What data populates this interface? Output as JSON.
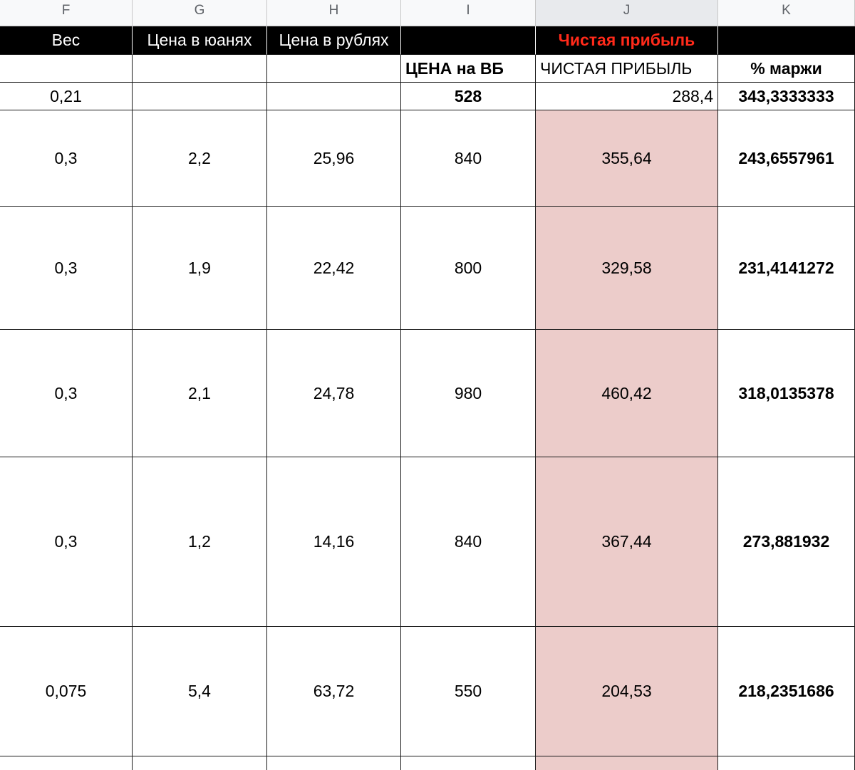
{
  "column_headers": [
    "F",
    "G",
    "H",
    "I",
    "J",
    "K"
  ],
  "selected_column": "J",
  "header_row": [
    "Вес",
    "Цена в юанях",
    "Цена в рублях",
    "",
    "Чистая прибыль",
    ""
  ],
  "subheader_row": [
    "",
    "",
    "",
    "ЦЕНА на ВБ",
    "ЧИСТАЯ ПРИБЫЛЬ",
    "% маржи"
  ],
  "rows": [
    [
      "0,21",
      "",
      "",
      "528",
      "288,4",
      "343,3333333"
    ],
    [
      "0,3",
      "2,2",
      "25,96",
      "840",
      "355,64",
      "243,6557961"
    ],
    [
      "0,3",
      "1,9",
      "22,42",
      "800",
      "329,58",
      "231,4141272"
    ],
    [
      "0,3",
      "2,1",
      "24,78",
      "980",
      "460,42",
      "318,0135378"
    ],
    [
      "0,3",
      "1,2",
      "14,16",
      "840",
      "367,44",
      "273,881932"
    ],
    [
      "0,075",
      "5,4",
      "63,72",
      "550",
      "204,53",
      "218,2351686"
    ]
  ],
  "colors": {
    "header_bg": "#000000",
    "header_text": "#ffffff",
    "profit_header_text": "#ff2a1a",
    "highlight_fill": "#ecccca"
  }
}
